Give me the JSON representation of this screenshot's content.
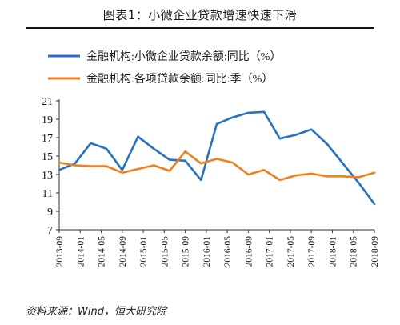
{
  "header": {
    "title": "图表1：小微企业贷款增速快速下滑"
  },
  "footer": {
    "source": "资料来源：Wind，恒大研究院"
  },
  "colors": {
    "series1": "#2472c8",
    "series2": "#f07f17",
    "axis": "#333333"
  },
  "chart_data": {
    "type": "line",
    "legend_position": "top-left",
    "grid": false,
    "ylim": [
      7,
      21
    ],
    "yticks": [
      7,
      9,
      11,
      13,
      15,
      17,
      19,
      21
    ],
    "x_tick_labels": [
      "2013-09",
      "2014-01",
      "2014-05",
      "2014-09",
      "2015-01",
      "2015-05",
      "2015-09",
      "2016-01",
      "2016-05",
      "2016-09",
      "2017-01",
      "2017-05",
      "2017-09",
      "2018-01",
      "2018-05",
      "2018-09"
    ],
    "x": [
      "2013-09",
      "2013-12",
      "2014-03",
      "2014-06",
      "2014-09",
      "2014-12",
      "2015-03",
      "2015-06",
      "2015-09",
      "2015-12",
      "2016-03",
      "2016-06",
      "2016-09",
      "2016-12",
      "2017-03",
      "2017-06",
      "2017-09",
      "2017-12",
      "2018-03",
      "2018-06",
      "2018-09"
    ],
    "series": [
      {
        "name": "金融机构:小微企业贷款余额:同比（%）",
        "values": [
          13.5,
          14.2,
          16.4,
          15.8,
          13.5,
          17.1,
          15.8,
          14.6,
          14.5,
          12.4,
          18.5,
          19.2,
          19.7,
          19.8,
          16.9,
          17.3,
          17.9,
          16.3,
          14.2,
          12.1,
          9.8
        ]
      },
      {
        "name": "金融机构:各项贷款余额:同比:季（%）",
        "values": [
          14.3,
          14.0,
          13.9,
          13.9,
          13.2,
          13.6,
          14.0,
          13.4,
          15.5,
          14.2,
          14.7,
          14.3,
          13.0,
          13.5,
          12.4,
          12.9,
          13.1,
          12.8,
          12.8,
          12.7,
          13.2
        ]
      }
    ]
  }
}
